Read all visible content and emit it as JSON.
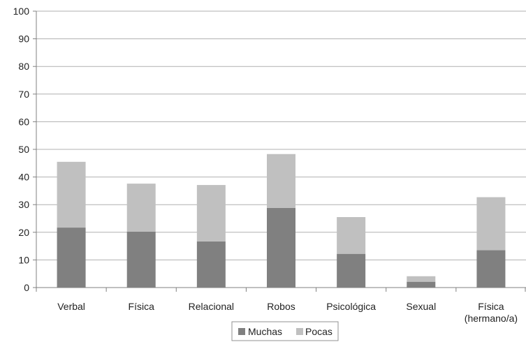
{
  "chart_data": {
    "type": "bar",
    "stacked": true,
    "categories": [
      [
        "Verbal"
      ],
      [
        "Física"
      ],
      [
        "Relacional"
      ],
      [
        "Robos"
      ],
      [
        "Psicológica"
      ],
      [
        "Sexual"
      ],
      [
        "Física",
        "(hermano/a)"
      ]
    ],
    "series": [
      {
        "name": "Muchas",
        "color": "#808080",
        "values": [
          21.7,
          20.2,
          16.7,
          28.8,
          12.2,
          2.1,
          13.5
        ]
      },
      {
        "name": "Pocas",
        "color": "#c0c0c0",
        "values": [
          23.8,
          17.4,
          20.4,
          19.5,
          13.3,
          2.0,
          19.2
        ]
      }
    ],
    "ylim": [
      0,
      100
    ],
    "yticks": [
      0,
      10,
      20,
      30,
      40,
      50,
      60,
      70,
      80,
      90,
      100
    ],
    "grid": true,
    "legend_position": "bottom-center",
    "gridline_color": "#b0b0b0",
    "axis_color": "#808080"
  }
}
